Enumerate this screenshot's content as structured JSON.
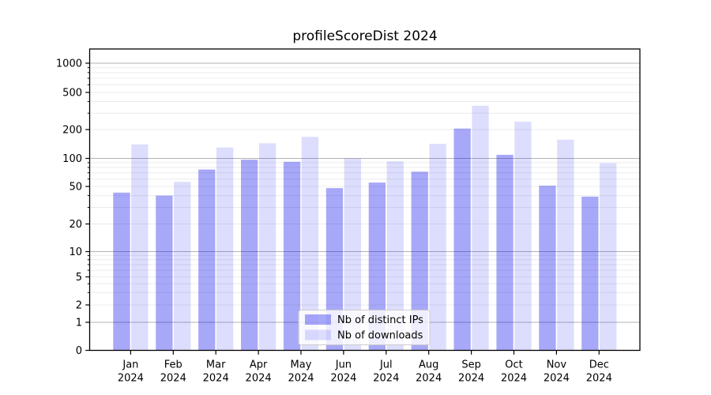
{
  "chart_data": {
    "type": "bar",
    "title": "profileScoreDist 2024",
    "categories": [
      "Jan",
      "Feb",
      "Mar",
      "Apr",
      "May",
      "Jun",
      "Jul",
      "Aug",
      "Sep",
      "Oct",
      "Nov",
      "Dec"
    ],
    "category_year_line": "2024",
    "series": [
      {
        "name": "Nb of distinct IPs",
        "color_hex": "#a8a8f9",
        "fill": "rgba(0,0,238,0.34)",
        "values": [
          43,
          40,
          76,
          97,
          92,
          48,
          55,
          72,
          205,
          109,
          51,
          39
        ]
      },
      {
        "name": "Nb of downloads",
        "color_hex": "#ddddfc",
        "fill": "rgba(0,0,238,0.135)",
        "values": [
          140,
          56,
          130,
          144,
          168,
          100,
          93,
          142,
          360,
          243,
          157,
          89
        ]
      }
    ],
    "yscale": "symlog",
    "yticks": [
      0,
      1,
      2,
      5,
      10,
      20,
      50,
      100,
      200,
      500,
      1000
    ],
    "ylim": [
      0,
      1400
    ],
    "xlabel": "",
    "ylabel": "",
    "grid": true,
    "legend_position": "lower center",
    "grid_major_color": "#b3b3b3",
    "grid_minor_color": "#ececec"
  }
}
